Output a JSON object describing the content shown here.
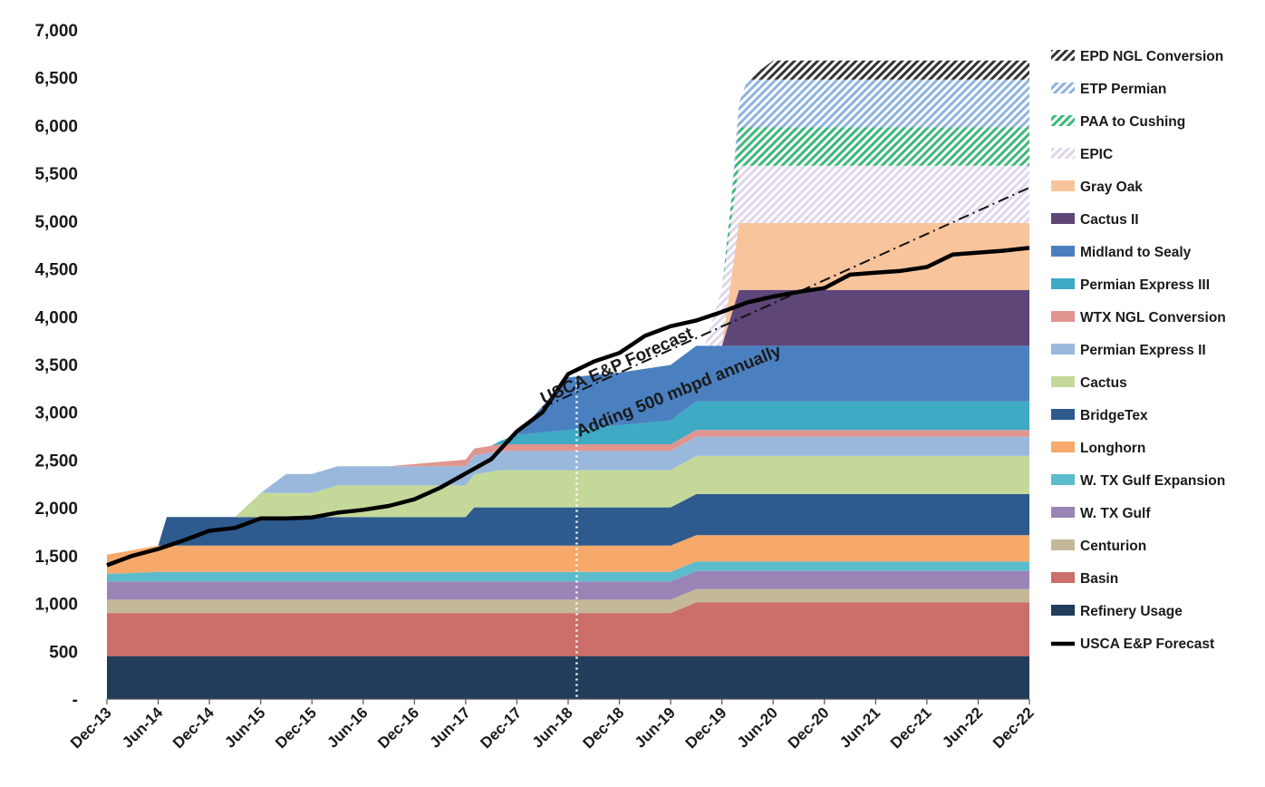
{
  "chart_data": {
    "type": "area",
    "stacked": true,
    "yticks": [
      "-",
      "500",
      "1,000",
      "1,500",
      "2,000",
      "2,500",
      "3,000",
      "3,500",
      "4,000",
      "4,500",
      "5,000",
      "5,500",
      "6,000",
      "6,500",
      "7,000"
    ],
    "ylim": [
      0,
      7000
    ],
    "xlim": [
      0,
      108
    ],
    "x_unit": "months since Dec-13",
    "xticks": [
      {
        "label": "Dec-13",
        "x": 0
      },
      {
        "label": "Jun-14",
        "x": 6
      },
      {
        "label": "Dec-14",
        "x": 12
      },
      {
        "label": "Jun-15",
        "x": 18
      },
      {
        "label": "Dec-15",
        "x": 24
      },
      {
        "label": "Jun-16",
        "x": 30
      },
      {
        "label": "Dec-16",
        "x": 36
      },
      {
        "label": "Jun-17",
        "x": 42
      },
      {
        "label": "Dec-17",
        "x": 48
      },
      {
        "label": "Jun-18",
        "x": 54
      },
      {
        "label": "Dec-18",
        "x": 60
      },
      {
        "label": "Jun-19",
        "x": 66
      },
      {
        "label": "Dec-19",
        "x": 72
      },
      {
        "label": "Jun-20",
        "x": 78
      },
      {
        "label": "Dec-20",
        "x": 84
      },
      {
        "label": "Jun-21",
        "x": 90
      },
      {
        "label": "Dec-21",
        "x": 96
      },
      {
        "label": "Jun-22",
        "x": 102
      },
      {
        "label": "Dec-22",
        "x": 108
      }
    ],
    "legend_position": "right",
    "grid": false,
    "series": [
      {
        "name": "Refinery Usage",
        "color": "#223c5c",
        "hatch": false,
        "start": 0,
        "points": [
          [
            0,
            450
          ],
          [
            108,
            450
          ]
        ]
      },
      {
        "name": "Basin",
        "color": "#cc6e6a",
        "hatch": false,
        "start": 0,
        "points": [
          [
            0,
            450
          ],
          [
            56,
            450
          ],
          [
            66,
            450
          ],
          [
            69,
            560
          ],
          [
            108,
            560
          ]
        ]
      },
      {
        "name": "Centurion",
        "color": "#c4b898",
        "hatch": false,
        "start": 0,
        "points": [
          [
            0,
            140
          ],
          [
            108,
            140
          ]
        ]
      },
      {
        "name": "W. TX Gulf",
        "color": "#9a84b6",
        "hatch": false,
        "start": 0,
        "points": [
          [
            0,
            190
          ],
          [
            108,
            190
          ]
        ]
      },
      {
        "name": "W. TX Gulf Expansion",
        "color": "#5cbccc",
        "hatch": false,
        "start": 0,
        "points": [
          [
            0,
            80
          ],
          [
            6,
            100
          ],
          [
            108,
            100
          ]
        ]
      },
      {
        "name": "Longhorn",
        "color": "#f6a96a",
        "hatch": false,
        "start": 0,
        "points": [
          [
            0,
            200
          ],
          [
            6,
            275
          ],
          [
            108,
            275
          ]
        ]
      },
      {
        "name": "BridgeTex",
        "color": "#2e5a8e",
        "hatch": false,
        "start": 6,
        "points": [
          [
            6,
            0
          ],
          [
            7,
            300
          ],
          [
            12,
            300
          ],
          [
            42,
            300
          ],
          [
            43,
            400
          ],
          [
            66,
            400
          ],
          [
            69,
            430
          ],
          [
            108,
            430
          ]
        ]
      },
      {
        "name": "Cactus",
        "color": "#c4d89a",
        "hatch": false,
        "start": 15,
        "points": [
          [
            15,
            0
          ],
          [
            18,
            250
          ],
          [
            24,
            250
          ],
          [
            27,
            330
          ],
          [
            42,
            330
          ],
          [
            46,
            390
          ],
          [
            48,
            390
          ],
          [
            66,
            390
          ],
          [
            69,
            400
          ],
          [
            108,
            400
          ]
        ]
      },
      {
        "name": "Permian Express II",
        "color": "#9ab8dc",
        "hatch": false,
        "start": 18,
        "points": [
          [
            18,
            0
          ],
          [
            21,
            200
          ],
          [
            24,
            200
          ],
          [
            27,
            200
          ],
          [
            42,
            200
          ],
          [
            46,
            200
          ],
          [
            66,
            200
          ],
          [
            69,
            200
          ],
          [
            108,
            200
          ]
        ]
      },
      {
        "name": "WTX NGL Conversion",
        "color": "#e09590",
        "hatch": false,
        "start": 33,
        "points": [
          [
            33,
            0
          ],
          [
            42,
            70
          ],
          [
            108,
            70
          ]
        ]
      },
      {
        "name": "Permian Express III",
        "color": "#3eaac4",
        "hatch": false,
        "start": 45,
        "points": [
          [
            45,
            0
          ],
          [
            48,
            100
          ],
          [
            54,
            150
          ],
          [
            66,
            250
          ],
          [
            69,
            300
          ],
          [
            108,
            300
          ]
        ]
      },
      {
        "name": "Midland to Sealy",
        "color": "#4a80c0",
        "hatch": false,
        "start": 48,
        "points": [
          [
            48,
            0
          ],
          [
            54,
            550
          ],
          [
            60,
            550
          ],
          [
            66,
            580
          ],
          [
            69,
            580
          ],
          [
            108,
            580
          ]
        ]
      },
      {
        "name": "Cactus II",
        "color": "#5e4678",
        "hatch": false,
        "start": 72,
        "points": [
          [
            72,
            0
          ],
          [
            74,
            585
          ],
          [
            108,
            585
          ]
        ]
      },
      {
        "name": "Gray Oak",
        "color": "#f8c49c",
        "hatch": false,
        "start": 72,
        "points": [
          [
            72,
            0
          ],
          [
            74,
            700
          ],
          [
            108,
            700
          ]
        ]
      },
      {
        "name": "EPIC",
        "color": "#e0d6ec",
        "hatch": true,
        "start": 70,
        "points": [
          [
            70,
            0
          ],
          [
            72,
            600
          ],
          [
            108,
            600
          ]
        ]
      },
      {
        "name": "PAA to Cushing",
        "color": "#3cb878",
        "hatch": true,
        "start": 72,
        "points": [
          [
            72,
            0
          ],
          [
            74,
            400
          ],
          [
            108,
            400
          ]
        ]
      },
      {
        "name": "ETP Permian",
        "color": "#8eb2e0",
        "hatch": true,
        "start": 73,
        "points": [
          [
            73,
            0
          ],
          [
            75,
            500
          ],
          [
            108,
            500
          ]
        ]
      },
      {
        "name": "EPD NGL Conversion",
        "color": "#333333",
        "hatch": true,
        "start": 75,
        "points": [
          [
            75,
            0
          ],
          [
            78,
            200
          ],
          [
            108,
            200
          ]
        ]
      }
    ],
    "line": {
      "name": "USCA E&P Forecast",
      "color": "#000000",
      "points": [
        [
          0,
          1400
        ],
        [
          3,
          1500
        ],
        [
          6,
          1570
        ],
        [
          9,
          1660
        ],
        [
          12,
          1760
        ],
        [
          15,
          1790
        ],
        [
          18,
          1890
        ],
        [
          21,
          1890
        ],
        [
          24,
          1900
        ],
        [
          27,
          1950
        ],
        [
          30,
          1980
        ],
        [
          33,
          2020
        ],
        [
          36,
          2090
        ],
        [
          39,
          2210
        ],
        [
          42,
          2360
        ],
        [
          45,
          2510
        ],
        [
          48,
          2800
        ],
        [
          51,
          3000
        ],
        [
          54,
          3400
        ],
        [
          57,
          3530
        ],
        [
          60,
          3620
        ],
        [
          63,
          3800
        ],
        [
          66,
          3900
        ],
        [
          69,
          3960
        ],
        [
          72,
          4050
        ],
        [
          75,
          4150
        ],
        [
          78,
          4210
        ],
        [
          81,
          4260
        ],
        [
          84,
          4300
        ],
        [
          87,
          4440
        ],
        [
          90,
          4460
        ],
        [
          93,
          4480
        ],
        [
          96,
          4520
        ],
        [
          99,
          4650
        ],
        [
          102,
          4670
        ],
        [
          105,
          4690
        ],
        [
          108,
          4720
        ]
      ]
    },
    "trend_line": {
      "name": "Adding 500 mbpd annually",
      "points": [
        [
          51,
          3050
        ],
        [
          108,
          5350
        ]
      ],
      "style": "dash-dot"
    },
    "vertical_marker": {
      "x": 55,
      "style": "dotted"
    },
    "annotations": [
      {
        "text": "USCA E&P Forecast",
        "x": 61,
        "y": 3700
      },
      {
        "text": "Adding  500 mbpd annually",
        "x": 64,
        "y": 3150
      }
    ]
  }
}
